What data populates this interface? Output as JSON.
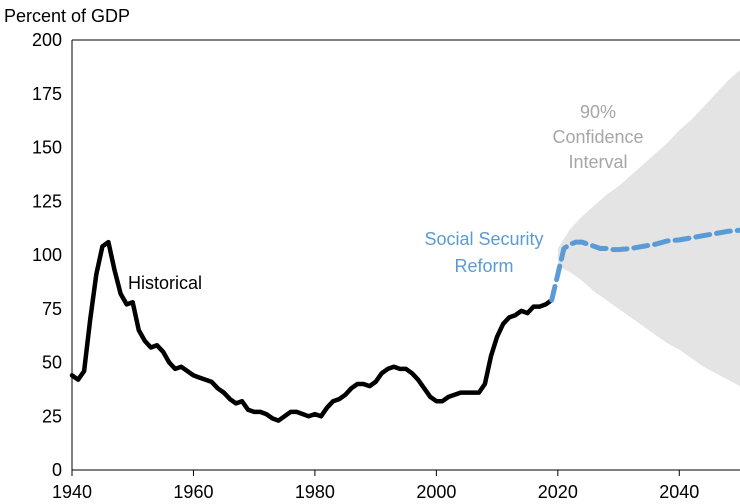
{
  "chart_data": {
    "type": "line",
    "ylabel": "Percent of GDP",
    "xlim": [
      1940,
      2050
    ],
    "ylim": [
      0,
      200
    ],
    "x_ticks": [
      "1940",
      "1960",
      "1980",
      "2000",
      "2020",
      "2040"
    ],
    "y_ticks": [
      "0",
      "25",
      "50",
      "75",
      "100",
      "125",
      "150",
      "175",
      "200"
    ],
    "grid": false,
    "series": [
      {
        "name": "Historical",
        "style": "solid",
        "color": "#000000",
        "x": [
          1940,
          1941,
          1942,
          1943,
          1944,
          1945,
          1946,
          1947,
          1948,
          1949,
          1950,
          1951,
          1952,
          1953,
          1954,
          1955,
          1956,
          1957,
          1958,
          1959,
          1960,
          1961,
          1962,
          1963,
          1964,
          1965,
          1966,
          1967,
          1968,
          1969,
          1970,
          1971,
          1972,
          1973,
          1974,
          1975,
          1976,
          1977,
          1978,
          1979,
          1980,
          1981,
          1982,
          1983,
          1984,
          1985,
          1986,
          1987,
          1988,
          1989,
          1990,
          1991,
          1992,
          1993,
          1994,
          1995,
          1996,
          1997,
          1998,
          1999,
          2000,
          2001,
          2002,
          2003,
          2004,
          2005,
          2006,
          2007,
          2008,
          2009,
          2010,
          2011,
          2012,
          2013,
          2014,
          2015,
          2016,
          2017,
          2018,
          2019
        ],
        "y": [
          44,
          42,
          46,
          70,
          91,
          104,
          106,
          93,
          82,
          77,
          78,
          65,
          60,
          57,
          58,
          55,
          50,
          47,
          48,
          46,
          44,
          43,
          42,
          41,
          38,
          36,
          33,
          31,
          32,
          28,
          27,
          27,
          26,
          24,
          23,
          25,
          27,
          27,
          26,
          25,
          26,
          25,
          29,
          32,
          33,
          35,
          38,
          40,
          40,
          39,
          41,
          45,
          47,
          48,
          47,
          47,
          45,
          42,
          38,
          34,
          32,
          32,
          34,
          35,
          36,
          36,
          36,
          36,
          40,
          53,
          62,
          68,
          71,
          72,
          74,
          73,
          76,
          76,
          77,
          79
        ]
      },
      {
        "name": "Social Security Reform",
        "style": "dashed",
        "color": "#5b9bd5",
        "x": [
          2019,
          2020,
          2021,
          2022,
          2023,
          2024,
          2025,
          2026,
          2027,
          2028,
          2029,
          2030,
          2032,
          2034,
          2036,
          2038,
          2040,
          2042,
          2044,
          2046,
          2048,
          2050
        ],
        "y": [
          79,
          91,
          103,
          105,
          106,
          106,
          105,
          104,
          103,
          103,
          102.5,
          102.5,
          103,
          104,
          105,
          106.5,
          107,
          108,
          109,
          110,
          111,
          111.5
        ]
      }
    ],
    "confidence_band": {
      "label": "90% Confidence Interval",
      "color": "#e4e4e4",
      "x": [
        2020,
        2022,
        2024,
        2026,
        2028,
        2030,
        2032,
        2034,
        2036,
        2038,
        2040,
        2042,
        2044,
        2046,
        2048,
        2050
      ],
      "upper": [
        103,
        112,
        118,
        123,
        128,
        132,
        137,
        142,
        147,
        152,
        158,
        163,
        169,
        175,
        181,
        186
      ],
      "lower": [
        95,
        92,
        88,
        83,
        79,
        75,
        71,
        67,
        63,
        59,
        56,
        52,
        48,
        45,
        42,
        39
      ]
    },
    "annotations": {
      "historical": "Historical",
      "reform_line1": "Social Security",
      "reform_line2": "Reform",
      "ci_line1": "90%",
      "ci_line2": "Confidence",
      "ci_line3": "Interval"
    },
    "colors": {
      "historical": "#000000",
      "reform": "#5b9bd5",
      "band": "#e4e4e4",
      "band_text": "#a6a6a6"
    }
  }
}
